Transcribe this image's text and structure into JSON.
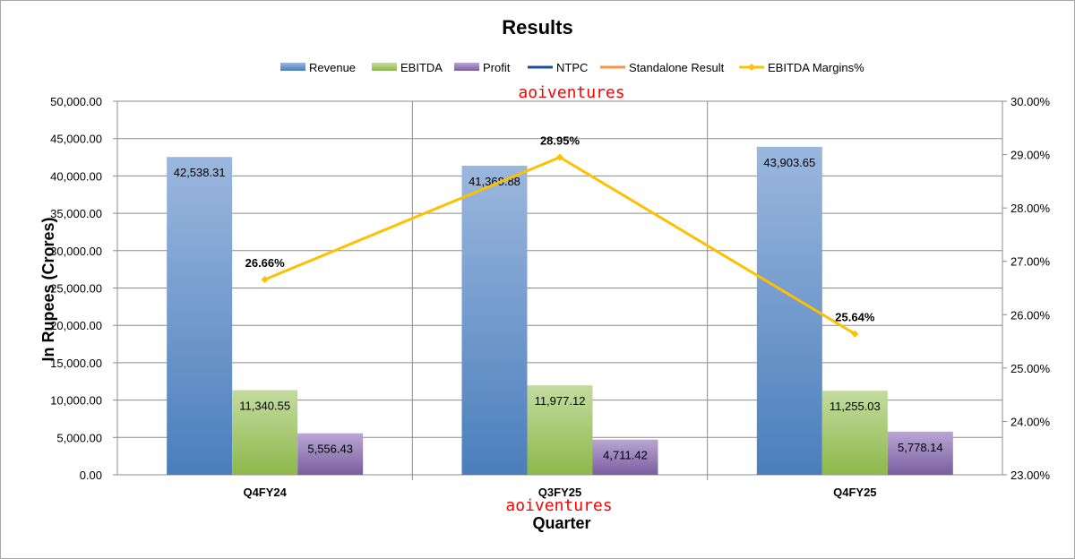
{
  "chart_data": {
    "type": "bar",
    "title": "Results",
    "xlabel": "Quarter",
    "ylabel": "In Rupees (Crores)",
    "categories": [
      "Q4FY24",
      "Q3FY25",
      "Q4FY25"
    ],
    "series": [
      {
        "name": "Revenue",
        "kind": "bar",
        "axis": "left",
        "values": [
          42538.31,
          41368.88,
          43903.65
        ],
        "labels": [
          "42,538.31",
          "41,368.88",
          "43,903.65"
        ],
        "color": "#4f81bd"
      },
      {
        "name": "EBITDA",
        "kind": "bar",
        "axis": "left",
        "values": [
          11340.55,
          11977.12,
          11255.03
        ],
        "labels": [
          "11,340.55",
          "11,977.12",
          "11,255.03"
        ],
        "color": "#9bbb59"
      },
      {
        "name": "Profit",
        "kind": "bar",
        "axis": "left",
        "values": [
          5556.43,
          4711.42,
          5778.14
        ],
        "labels": [
          "5,556.43",
          "4,711.42",
          "5,778.14"
        ],
        "color": "#8064a2"
      },
      {
        "name": "NTPC",
        "kind": "legend-only",
        "color": "#1f4e9b"
      },
      {
        "name": "Standalone Result",
        "kind": "legend-only",
        "color": "#f79646"
      },
      {
        "name": "EBITDA Margins%",
        "kind": "line",
        "axis": "right",
        "values": [
          26.66,
          28.95,
          25.64
        ],
        "labels": [
          "26.66%",
          "28.95%",
          "25.64%"
        ],
        "color": "#ffc000"
      }
    ],
    "ylim": [
      0,
      50000
    ],
    "yticks": [
      "0.00",
      "5,000.00",
      "10,000.00",
      "15,000.00",
      "20,000.00",
      "25,000.00",
      "30,000.00",
      "35,000.00",
      "40,000.00",
      "45,000.00",
      "50,000.00"
    ],
    "y2lim": [
      23,
      30
    ],
    "y2ticks": [
      "23.00%",
      "24.00%",
      "25.00%",
      "26.00%",
      "27.00%",
      "28.00%",
      "29.00%",
      "30.00%"
    ],
    "grid": true,
    "legend": "top"
  },
  "watermark": "aoiventures"
}
